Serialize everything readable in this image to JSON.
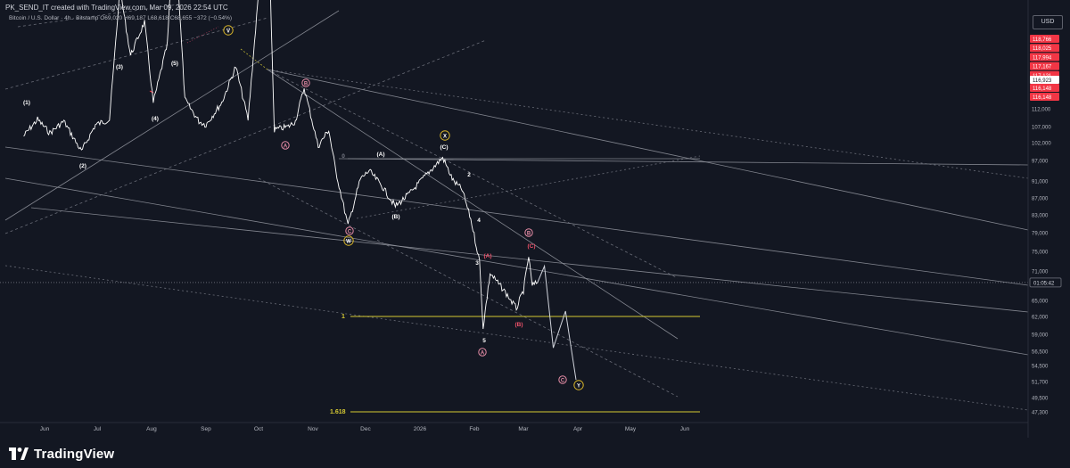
{
  "header": {
    "credit": "PK_SEND_IT created with TradingView.com, Mar 09, 2026 22:54 UTC"
  },
  "symbol": {
    "name": "Bitcoin / U.S. Dollar · 4h · Bitstamp",
    "open": "O69,020",
    "high": "H69,187",
    "low": "L68,618",
    "close": "C68,655",
    "change": "−372 (−0.54%)"
  },
  "currency": "USD",
  "branding": "TradingView",
  "colors": {
    "background": "#131722",
    "price_line": "#ffffff",
    "red_badge": "#f23645",
    "yellow_fib": "#d4c833",
    "wave_circle_yellow": "#d4b22a",
    "wave_circle_pink": "#e58ca6",
    "wave_red_label": "#f0526b"
  },
  "chart_data": {
    "type": "line",
    "title": "",
    "xlabel": "",
    "ylabel": "",
    "x_ticks": [
      "Jun",
      "Jul",
      "Aug",
      "Sep",
      "Oct",
      "Nov",
      "Dec",
      "2026",
      "Feb",
      "Mar",
      "Apr",
      "May",
      "Jun"
    ],
    "y_ticks": [
      "112,000",
      "107,000",
      "102,000",
      "97,000",
      "91,000",
      "87,000",
      "83,000",
      "79,000",
      "75,000",
      "71,000",
      "65,000",
      "62,000",
      "59,000",
      "56,500",
      "54,500",
      "51,700",
      "49,500",
      "47,300"
    ],
    "current_price_label": "01:05:42",
    "red_price_badges": [
      "118,766",
      "118,025",
      "117,994",
      "117,167",
      "117,121",
      "116,148",
      "116,148"
    ],
    "white_price_badge": "116,923",
    "series": [
      {
        "values": [
          [
            "2025-05-20",
            104000
          ],
          [
            "2025-05-28",
            109000
          ],
          [
            "2025-06-04",
            105000
          ],
          [
            "2025-06-12",
            108500
          ],
          [
            "2025-06-22",
            99500
          ],
          [
            "2025-06-30",
            107500
          ],
          [
            "2025-07-08",
            109000
          ],
          [
            "2025-07-14",
            121000
          ],
          [
            "2025-07-20",
            118000
          ],
          [
            "2025-07-28",
            119500
          ],
          [
            "2025-08-02",
            113000
          ],
          [
            "2025-08-10",
            118500
          ],
          [
            "2025-08-14",
            124000
          ],
          [
            "2025-08-20",
            113500
          ],
          [
            "2025-08-28",
            108500
          ],
          [
            "2025-09-01",
            107500
          ],
          [
            "2025-09-10",
            113000
          ],
          [
            "2025-09-18",
            117500
          ],
          [
            "2025-09-25",
            109000
          ],
          [
            "2025-10-06",
            125500
          ],
          [
            "2025-10-10",
            106000
          ],
          [
            "2025-10-18",
            107000
          ],
          [
            "2025-10-22",
            108500
          ],
          [
            "2025-10-27",
            115500
          ],
          [
            "2025-11-04",
            101000
          ],
          [
            "2025-11-10",
            106000
          ],
          [
            "2025-11-14",
            94000
          ],
          [
            "2025-11-21",
            80600
          ],
          [
            "2025-11-28",
            91500
          ],
          [
            "2025-12-03",
            94000
          ],
          [
            "2025-12-10",
            90000
          ],
          [
            "2025-12-18",
            85000
          ],
          [
            "2025-12-26",
            88000
          ],
          [
            "2026-01-05",
            93000
          ],
          [
            "2026-01-14",
            97800
          ],
          [
            "2026-01-20",
            91000
          ],
          [
            "2026-01-25",
            89000
          ],
          [
            "2026-01-30",
            82000
          ],
          [
            "2026-02-04",
            73000
          ],
          [
            "2026-02-06",
            60100
          ],
          [
            "2026-02-10",
            70500
          ],
          [
            "2026-02-18",
            67000
          ],
          [
            "2026-02-25",
            63500
          ],
          [
            "2026-03-01",
            67000
          ],
          [
            "2026-03-04",
            74000
          ],
          [
            "2026-03-06",
            68000
          ],
          [
            "2026-03-09",
            68655
          ]
        ]
      }
    ],
    "projection": [
      [
        "2026-03-09",
        68655
      ],
      [
        "2026-03-13",
        72000
      ],
      [
        "2026-03-18",
        57000
      ],
      [
        "2026-03-25",
        63000
      ],
      [
        "2026-03-31",
        52000
      ]
    ],
    "fib_levels": [
      {
        "label": "1",
        "value": 62000
      },
      {
        "label": "1.618",
        "value": 47300
      }
    ],
    "wave_labels": {
      "plain": [
        "(1)",
        "(2)",
        "(3)",
        "(4)",
        "(5)",
        "(A)",
        "(B)",
        "(C)",
        "2",
        "3",
        "4",
        "5",
        "0"
      ],
      "red": [
        "(A)",
        "(B)",
        "(C)"
      ],
      "circled_yellow": [
        "V",
        "X",
        "W",
        "Y"
      ],
      "circled_pink": [
        "A",
        "B",
        "C"
      ]
    }
  }
}
